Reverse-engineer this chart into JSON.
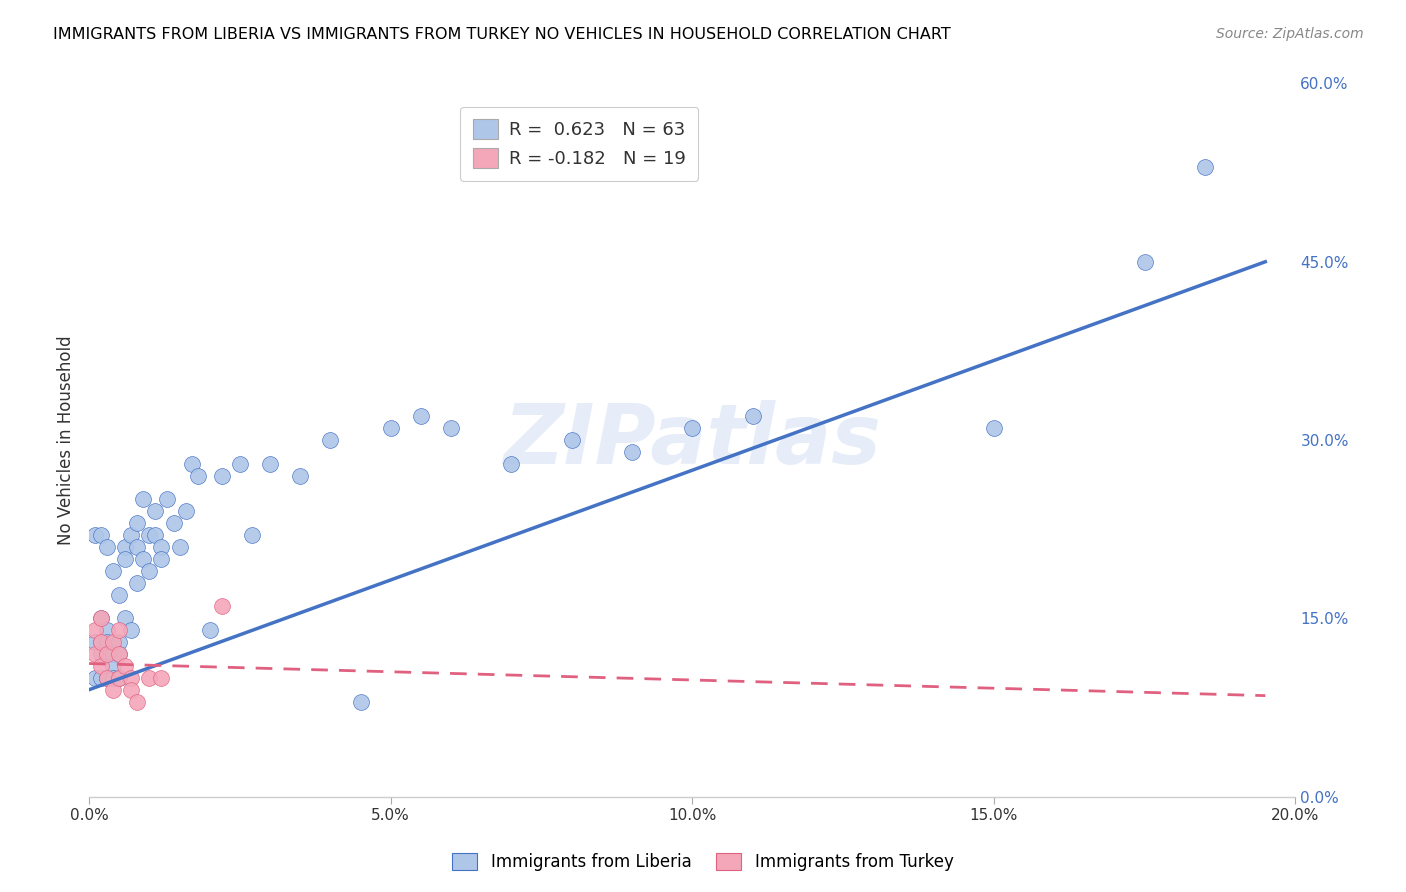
{
  "title": "IMMIGRANTS FROM LIBERIA VS IMMIGRANTS FROM TURKEY NO VEHICLES IN HOUSEHOLD CORRELATION CHART",
  "source": "Source: ZipAtlas.com",
  "xlabel_ticks": [
    "0.0%",
    "5.0%",
    "10.0%",
    "15.0%",
    "20.0%"
  ],
  "xlabel_vals": [
    0.0,
    0.05,
    0.1,
    0.15,
    0.2
  ],
  "ylabel_ticks": [
    "0.0%",
    "15.0%",
    "30.0%",
    "45.0%",
    "60.0%"
  ],
  "ylabel_vals": [
    0.0,
    0.15,
    0.3,
    0.45,
    0.6
  ],
  "ylabel_label": "No Vehicles in Household",
  "liberia_color": "#aec6e8",
  "liberia_line_color": "#4472c4",
  "turkey_color": "#f4a7b9",
  "turkey_line_color": "#e06080",
  "R_liberia": 0.623,
  "N_liberia": 63,
  "R_turkey": -0.182,
  "N_turkey": 19,
  "watermark": "ZIPatlas",
  "liberia_x": [
    0.001,
    0.001,
    0.001,
    0.002,
    0.002,
    0.002,
    0.002,
    0.002,
    0.003,
    0.003,
    0.003,
    0.003,
    0.003,
    0.003,
    0.004,
    0.004,
    0.004,
    0.004,
    0.005,
    0.005,
    0.005,
    0.005,
    0.006,
    0.006,
    0.006,
    0.007,
    0.007,
    0.008,
    0.008,
    0.008,
    0.009,
    0.009,
    0.01,
    0.01,
    0.011,
    0.011,
    0.012,
    0.012,
    0.013,
    0.014,
    0.015,
    0.016,
    0.017,
    0.018,
    0.02,
    0.022,
    0.025,
    0.027,
    0.03,
    0.035,
    0.04,
    0.045,
    0.05,
    0.055,
    0.06,
    0.07,
    0.08,
    0.09,
    0.1,
    0.11,
    0.15,
    0.175,
    0.185
  ],
  "liberia_y": [
    0.22,
    0.1,
    0.13,
    0.15,
    0.12,
    0.13,
    0.22,
    0.1,
    0.14,
    0.21,
    0.13,
    0.1,
    0.12,
    0.1,
    0.12,
    0.19,
    0.11,
    0.1,
    0.13,
    0.17,
    0.12,
    0.1,
    0.21,
    0.15,
    0.2,
    0.14,
    0.22,
    0.23,
    0.18,
    0.21,
    0.2,
    0.25,
    0.22,
    0.19,
    0.22,
    0.24,
    0.21,
    0.2,
    0.25,
    0.23,
    0.21,
    0.24,
    0.28,
    0.27,
    0.14,
    0.27,
    0.28,
    0.22,
    0.28,
    0.27,
    0.3,
    0.08,
    0.31,
    0.32,
    0.31,
    0.28,
    0.3,
    0.29,
    0.31,
    0.32,
    0.31,
    0.45,
    0.53
  ],
  "turkey_x": [
    0.001,
    0.001,
    0.002,
    0.002,
    0.002,
    0.003,
    0.003,
    0.004,
    0.004,
    0.005,
    0.005,
    0.005,
    0.006,
    0.007,
    0.007,
    0.008,
    0.01,
    0.012,
    0.022
  ],
  "turkey_y": [
    0.14,
    0.12,
    0.13,
    0.11,
    0.15,
    0.1,
    0.12,
    0.13,
    0.09,
    0.12,
    0.14,
    0.1,
    0.11,
    0.1,
    0.09,
    0.08,
    0.1,
    0.1,
    0.16
  ],
  "trend_lib_x0": 0.0,
  "trend_lib_x1": 0.195,
  "trend_lib_y0": 0.09,
  "trend_lib_y1": 0.45,
  "trend_tur_x0": 0.0,
  "trend_tur_x1": 0.195,
  "trend_tur_y0": 0.112,
  "trend_tur_y1": 0.085,
  "xmin": 0.0,
  "xmax": 0.2,
  "ymin": 0.0,
  "ymax": 0.6,
  "background_color": "#ffffff",
  "grid_color": "#d0d0d0"
}
